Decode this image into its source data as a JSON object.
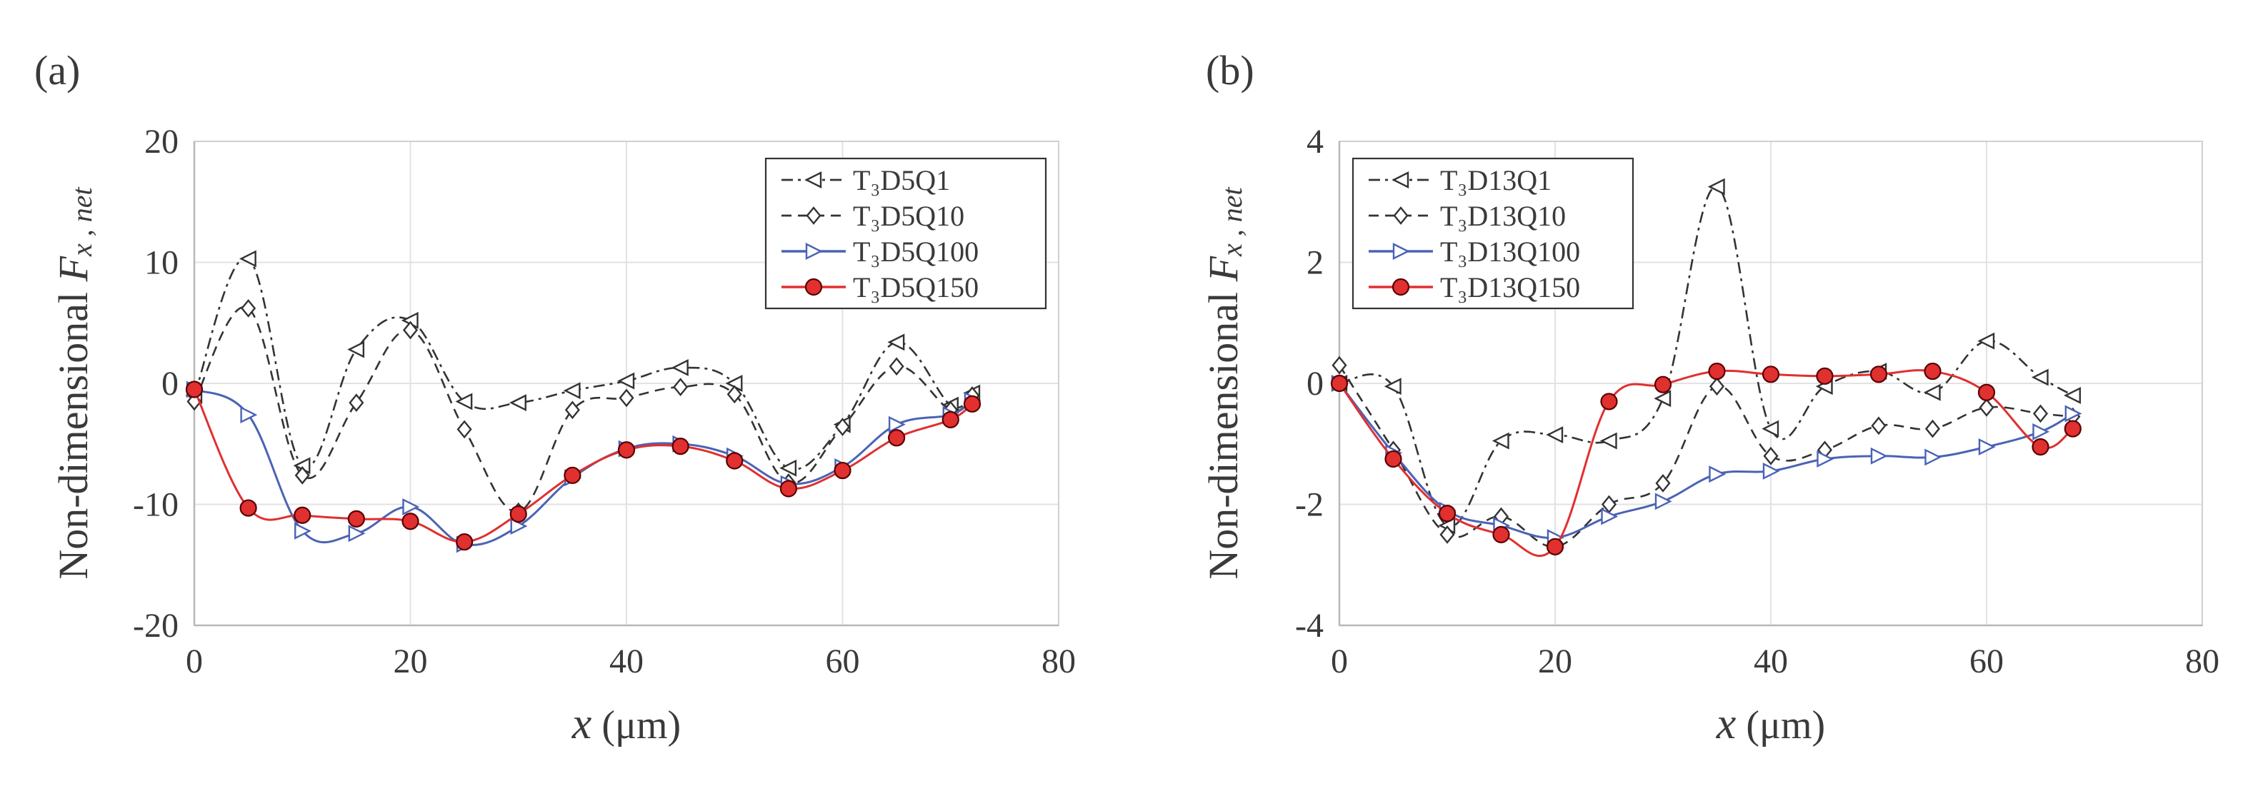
{
  "chart_data": [
    {
      "type": "line",
      "panel_label": "(a)",
      "xlabel_var": "x",
      "xlabel_unit": "(μm)",
      "ylabel_prefix": "Non-dimensional ",
      "ylabel_var": "F",
      "ylabel_sub": "x , net",
      "xlim": [
        0,
        80
      ],
      "ylim": [
        -20,
        20
      ],
      "xticks": [
        0,
        20,
        40,
        60,
        80
      ],
      "yticks": [
        -20,
        -10,
        0,
        10,
        20
      ],
      "grid": true,
      "legend_position": "top-right",
      "series": [
        {
          "name": "T₃D5Q1",
          "style": "dashdot",
          "marker": "triangle-left",
          "color": "#333333",
          "x": [
            0,
            5,
            10,
            15,
            20,
            25,
            30,
            35,
            40,
            45,
            50,
            55,
            60,
            65,
            70,
            72
          ],
          "y": [
            -1,
            10.3,
            -6.8,
            2.8,
            5.2,
            -1.5,
            -1.6,
            -0.6,
            0.2,
            1.3,
            0,
            -7,
            -3.4,
            3.4,
            -1.8,
            -0.8
          ]
        },
        {
          "name": "T₃D5Q10",
          "style": "dashed",
          "marker": "diamond",
          "color": "#333333",
          "x": [
            0,
            5,
            10,
            15,
            20,
            25,
            30,
            35,
            40,
            45,
            50,
            55,
            60,
            65,
            70,
            72
          ],
          "y": [
            -1.5,
            6.2,
            -7.6,
            -1.6,
            4.4,
            -3.8,
            -10.6,
            -2.2,
            -1.2,
            -0.3,
            -0.9,
            -8.2,
            -3.6,
            1.4,
            -2.2,
            -1
          ]
        },
        {
          "name": "T₃D5Q100",
          "style": "solid",
          "marker": "triangle-right",
          "color": "#4a63b5",
          "x": [
            0,
            5,
            10,
            15,
            20,
            25,
            30,
            35,
            40,
            45,
            50,
            55,
            60,
            65,
            70,
            72
          ],
          "y": [
            -0.5,
            -2.6,
            -12.2,
            -12.4,
            -10.2,
            -13.3,
            -11.8,
            -7.8,
            -5.4,
            -5,
            -6,
            -8.3,
            -6.9,
            -3.4,
            -2.6,
            -1.4
          ]
        },
        {
          "name": "T₃D5Q150",
          "style": "solid",
          "marker": "circle",
          "color": "#e03030",
          "x": [
            0,
            5,
            10,
            15,
            20,
            25,
            30,
            35,
            40,
            45,
            50,
            55,
            60,
            65,
            70,
            72
          ],
          "y": [
            -0.5,
            -10.3,
            -10.9,
            -11.2,
            -11.4,
            -13.1,
            -10.8,
            -7.6,
            -5.5,
            -5.2,
            -6.4,
            -8.7,
            -7.2,
            -4.5,
            -3,
            -1.7
          ]
        }
      ]
    },
    {
      "type": "line",
      "panel_label": "(b)",
      "xlabel_var": "x",
      "xlabel_unit": "(μm)",
      "ylabel_prefix": "Non-dimensional ",
      "ylabel_var": "F",
      "ylabel_sub": "x , net",
      "xlim": [
        0,
        80
      ],
      "ylim": [
        -4,
        4
      ],
      "xticks": [
        0,
        20,
        40,
        60,
        80
      ],
      "yticks": [
        -4,
        -2,
        0,
        2,
        4
      ],
      "grid": true,
      "legend_position": "top-left",
      "series": [
        {
          "name": "T₃D13Q1",
          "style": "dashdot",
          "marker": "triangle-left",
          "color": "#333333",
          "x": [
            0,
            5,
            10,
            15,
            20,
            25,
            30,
            35,
            40,
            45,
            50,
            55,
            60,
            65,
            68
          ],
          "y": [
            0,
            -0.05,
            -2.35,
            -0.95,
            -0.85,
            -0.95,
            -0.25,
            3.25,
            -0.75,
            -0.05,
            0.2,
            -0.15,
            0.7,
            0.1,
            -0.2
          ]
        },
        {
          "name": "T₃D13Q10",
          "style": "dashed",
          "marker": "diamond",
          "color": "#333333",
          "x": [
            0,
            5,
            10,
            15,
            20,
            25,
            30,
            35,
            40,
            45,
            50,
            55,
            60,
            65,
            68
          ],
          "y": [
            0.3,
            -1.1,
            -2.5,
            -2.2,
            -2.7,
            -2,
            -1.65,
            -0.05,
            -1.2,
            -1.1,
            -0.7,
            -0.75,
            -0.4,
            -0.5,
            -0.55
          ]
        },
        {
          "name": "T₃D13Q100",
          "style": "solid",
          "marker": "triangle-right",
          "color": "#4a63b5",
          "x": [
            0,
            5,
            10,
            15,
            20,
            25,
            30,
            35,
            40,
            45,
            50,
            55,
            60,
            65,
            68
          ],
          "y": [
            0,
            -1.15,
            -2.1,
            -2.35,
            -2.55,
            -2.2,
            -1.95,
            -1.5,
            -1.45,
            -1.25,
            -1.2,
            -1.22,
            -1.05,
            -0.8,
            -0.5
          ]
        },
        {
          "name": "T₃D13Q150",
          "style": "solid",
          "marker": "circle",
          "color": "#e03030",
          "x": [
            0,
            5,
            10,
            15,
            20,
            25,
            30,
            35,
            40,
            45,
            50,
            55,
            60,
            65,
            68
          ],
          "y": [
            0,
            -1.25,
            -2.15,
            -2.5,
            -2.7,
            -0.3,
            -0.02,
            0.2,
            0.15,
            0.12,
            0.15,
            0.2,
            -0.15,
            -1.05,
            -0.75
          ]
        }
      ]
    }
  ]
}
